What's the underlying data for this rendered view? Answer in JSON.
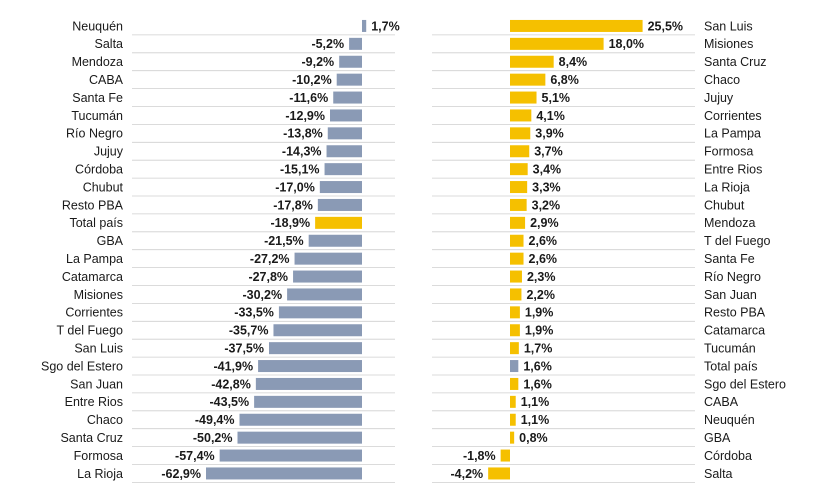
{
  "chart_data": [
    {
      "type": "bar",
      "orientation": "horizontal",
      "title": "",
      "xlabel": "",
      "ylabel": "",
      "grid": true,
      "highlight_category": "Total país",
      "colors": {
        "default": "#8a9ab5",
        "highlight": "#f5c000"
      },
      "categories": [
        "Neuquén",
        "Salta",
        "Mendoza",
        "CABA",
        "Santa Fe",
        "Tucumán",
        "Río Negro",
        "Jujuy",
        "Córdoba",
        "Chubut",
        "Resto PBA",
        "Total país",
        "GBA",
        "La Pampa",
        "Catamarca",
        "Misiones",
        "Corrientes",
        "T del Fuego",
        "San Luis",
        "Sgo del Estero",
        "San Juan",
        "Entre Rios",
        "Chaco",
        "Santa Cruz",
        "Formosa",
        "La Rioja"
      ],
      "values": [
        1.7,
        -5.2,
        -9.2,
        -10.2,
        -11.6,
        -12.9,
        -13.8,
        -14.3,
        -15.1,
        -17.0,
        -17.8,
        -18.9,
        -21.5,
        -27.2,
        -27.8,
        -30.2,
        -33.5,
        -35.7,
        -37.5,
        -41.9,
        -42.8,
        -43.5,
        -49.4,
        -50.2,
        -57.4,
        -62.9
      ],
      "value_labels": [
        "1,7%",
        "-5,2%",
        "-9,2%",
        "-10,2%",
        "-11,6%",
        "-12,9%",
        "-13,8%",
        "-14,3%",
        "-15,1%",
        "-17,0%",
        "-17,8%",
        "-18,9%",
        "-21,5%",
        "-27,2%",
        "-27,8%",
        "-30,2%",
        "-33,5%",
        "-35,7%",
        "-37,5%",
        "-41,9%",
        "-42,8%",
        "-43,5%",
        "-49,4%",
        "-50,2%",
        "-57,4%",
        "-62,9%"
      ]
    },
    {
      "type": "bar",
      "orientation": "horizontal",
      "title": "",
      "xlabel": "",
      "ylabel": "",
      "grid": true,
      "highlight_category": "Total país",
      "colors": {
        "default": "#f5c000",
        "highlight": "#8a9ab5"
      },
      "categories": [
        "San Luis",
        "Misiones",
        "Santa Cruz",
        "Chaco",
        "Jujuy",
        "Corrientes",
        "La Pampa",
        "Formosa",
        "Entre Rios",
        "La Rioja",
        "Chubut",
        "Mendoza",
        "T del Fuego",
        "Santa Fe",
        "Río Negro",
        "San Juan",
        "Resto PBA",
        "Catamarca",
        "Tucumán",
        "Total país",
        "Sgo del Estero",
        "CABA",
        "Neuquén",
        "GBA",
        "Córdoba",
        "Salta"
      ],
      "values": [
        25.5,
        18.0,
        8.4,
        6.8,
        5.1,
        4.1,
        3.9,
        3.7,
        3.4,
        3.3,
        3.2,
        2.9,
        2.6,
        2.6,
        2.3,
        2.2,
        1.9,
        1.9,
        1.7,
        1.6,
        1.6,
        1.1,
        1.1,
        0.8,
        -1.8,
        -4.2
      ],
      "value_labels": [
        "25,5%",
        "18,0%",
        "8,4%",
        "6,8%",
        "5,1%",
        "4,1%",
        "3,9%",
        "3,7%",
        "3,4%",
        "3,3%",
        "3,2%",
        "2,9%",
        "2,6%",
        "2,6%",
        "2,3%",
        "2,2%",
        "1,9%",
        "1,9%",
        "1,7%",
        "1,6%",
        "1,6%",
        "1,1%",
        "1,1%",
        "0,8%",
        "-1,8%",
        "-4,2%"
      ]
    }
  ]
}
